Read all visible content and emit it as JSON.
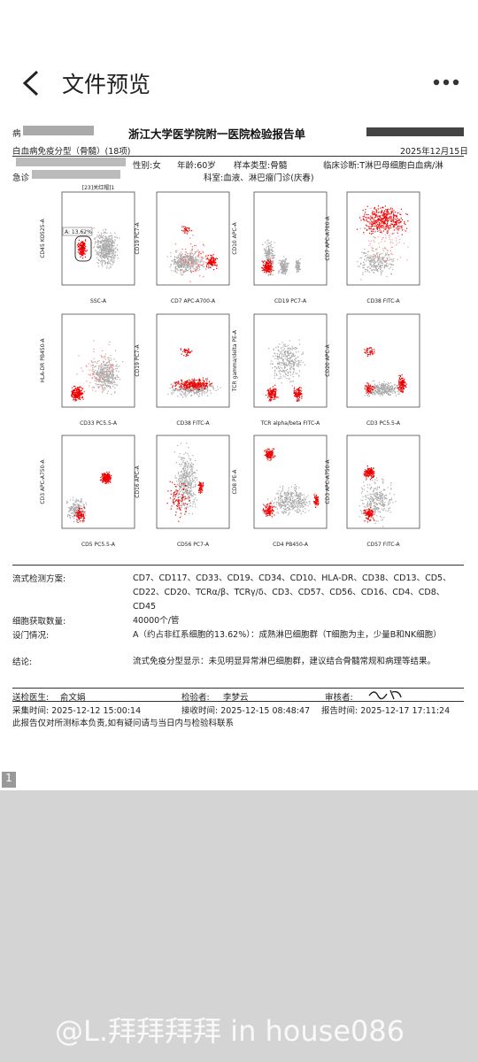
{
  "header": {
    "title": "文件预览"
  },
  "report": {
    "patient_prefix": "病",
    "hospital": "浙江大学医学院附一医院检验报告单",
    "test_name": "白血病免疫分型（骨髓）(18项)",
    "date": "2025年12月15日",
    "sex": "性别:女",
    "age": "年龄:60岁",
    "sample": "样本类型:骨髓",
    "diagnosis": "临床诊断:T淋巴母细胞白血病/淋",
    "clinic_prefix": "急诊",
    "department": "科室:血液、淋巴瘤门诊(庆春)",
    "plot_title": "[23]关红帽]1",
    "gate_label": "A: 13.62%",
    "plots": [
      {
        "y": "CD45 KO525-A",
        "x": "SSC-A"
      },
      {
        "y": "CD19 PC7-A",
        "x": "CD7 APC-A700-A"
      },
      {
        "y": "CD10 APC-A",
        "x": "CD19 PC7-A"
      },
      {
        "y": "CD7 APC-A700-A",
        "x": "CD38 FITC-A"
      },
      {
        "y": "HLA-DR PB450-A",
        "x": "CD33 PC5.5-A"
      },
      {
        "y": "CD19 PC7-A",
        "x": "CD38 FITC-A"
      },
      {
        "y": "TCR gamma/delta PE-A",
        "x": "TCR alpha/beta FITC-A"
      },
      {
        "y": "CD20 APC-A",
        "x": "CD3 PC5.5-A"
      },
      {
        "y": "CD3 APC-A750-A",
        "x": "CD5 PC5.5-A"
      },
      {
        "y": "CD16 APC-A",
        "x": "CD56 PC7-A"
      },
      {
        "y": "CD8 PE-A",
        "x": "CD4 PB450-A"
      },
      {
        "y": "CD3 APC-A750-A",
        "x": "CD57 FITC-A"
      }
    ],
    "results": [
      {
        "label": "流式检测方案:",
        "text": "CD7、CD117、CD33、CD19、CD34、CD10、HLA-DR、CD38、CD13、CD5、CD22、CD20、TCRα/β、TCRγ/δ、CD3、CD57、CD56、CD16、CD4、CD8、CD45"
      },
      {
        "label": "细胞获取数量:",
        "text": "40000个/管"
      },
      {
        "label": "设门情况:",
        "text": "A（约占非红系细胞的13.62%）：成熟淋巴细胞群（T细胞为主，少量B和NK细胞）"
      },
      {
        "label": "结论:",
        "text": "流式免疫分型显示：未见明显异常淋巴细胞群，建议结合骨髓常规和病理等结果。"
      }
    ],
    "footer": {
      "doctor_label": "送检医生:",
      "doctor": "俞文娟",
      "tester_label": "检验者:",
      "tester": "李梦云",
      "reviewer_label": "审核者:",
      "collect": "采集时间:  2025-12-12 15:00:14",
      "receive": "接收时间:  2025-12-15 08:48:47",
      "report_time": "报告时间:  2025-12-17 17:11:24",
      "note": "此报告仅对所测标本负责,如有疑问请与当日内与检验科联系"
    }
  },
  "page_number": "1",
  "watermark": "@L.拜拜拜拜 in house086"
}
